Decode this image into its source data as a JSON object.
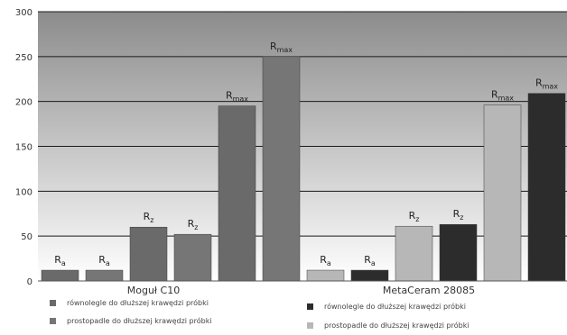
{
  "colors": {
    "mogul_parallel": "#6a6a6a",
    "mogul_perpendicular": "#767676",
    "meta_parallel": "#b7b7b7",
    "meta_perpendicular": "#2c2c2c",
    "plot_top": "#8c8c8c",
    "plot_bottom": "#ffffff",
    "gridline": "#1a1a1a"
  },
  "chart_data": {
    "type": "bar",
    "ylim": [
      0,
      300
    ],
    "yticks": [
      0,
      50,
      100,
      150,
      200,
      250,
      300
    ],
    "grid": true,
    "groups": [
      {
        "name": "Moguł C10",
        "legend": [
          {
            "label": "równolegle do dłuższej krawędzi próbki",
            "color_key": "mogul_parallel"
          },
          {
            "label": "prostopadle do dłuższej krawędzi próbki",
            "color_key": "mogul_perpendicular"
          }
        ],
        "bars": [
          {
            "param": "Ra",
            "base": "R",
            "sub": "a",
            "value": 12,
            "color_key": "mogul_parallel"
          },
          {
            "param": "Ra",
            "base": "R",
            "sub": "a",
            "value": 12,
            "color_key": "mogul_perpendicular"
          },
          {
            "param": "Rz",
            "base": "R",
            "sub": "z",
            "value": 60,
            "color_key": "mogul_parallel"
          },
          {
            "param": "Rz",
            "base": "R",
            "sub": "z",
            "value": 52,
            "color_key": "mogul_perpendicular"
          },
          {
            "param": "Rmax",
            "base": "R",
            "sub": "max",
            "value": 195,
            "color_key": "mogul_parallel"
          },
          {
            "param": "Rmax",
            "base": "R",
            "sub": "max",
            "value": 250,
            "color_key": "mogul_perpendicular"
          }
        ]
      },
      {
        "name": "MetaCeram 28085",
        "legend": [
          {
            "label": "równolegle do dłuższej krawędzi próbki",
            "color_key": "meta_perpendicular"
          },
          {
            "label": "prostopadle do dłuższej krawędzi próbki",
            "color_key": "meta_parallel"
          }
        ],
        "bars": [
          {
            "param": "Ra",
            "base": "R",
            "sub": "a",
            "value": 12,
            "color_key": "meta_parallel"
          },
          {
            "param": "Ra",
            "base": "R",
            "sub": "a",
            "value": 12,
            "color_key": "meta_perpendicular"
          },
          {
            "param": "Rz",
            "base": "R",
            "sub": "z",
            "value": 61,
            "color_key": "meta_parallel"
          },
          {
            "param": "Rz",
            "base": "R",
            "sub": "z",
            "value": 63,
            "color_key": "meta_perpendicular"
          },
          {
            "param": "Rmax",
            "base": "R",
            "sub": "max",
            "value": 196,
            "color_key": "meta_parallel"
          },
          {
            "param": "Rmax",
            "base": "R",
            "sub": "max",
            "value": 209,
            "color_key": "meta_perpendicular"
          }
        ]
      }
    ]
  }
}
